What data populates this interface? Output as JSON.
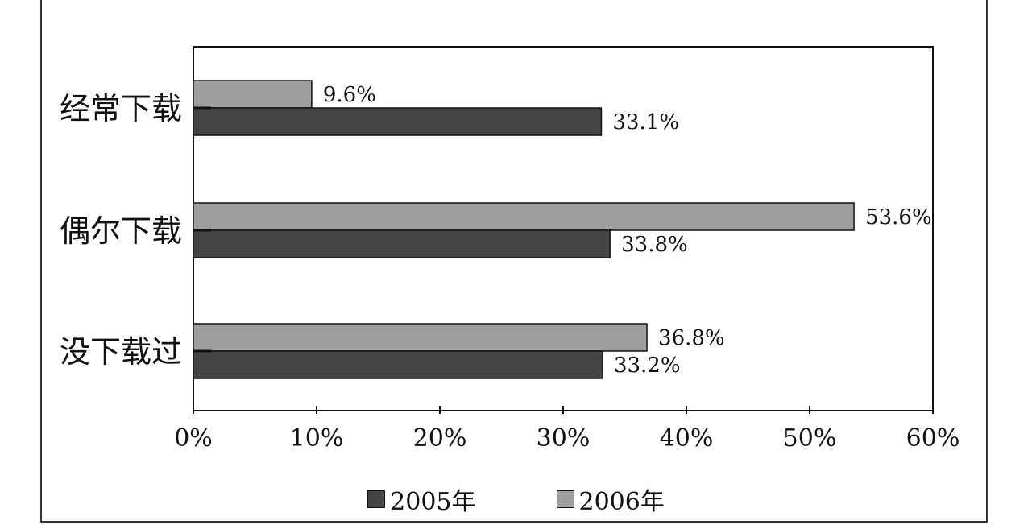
{
  "chart_data": {
    "type": "bar",
    "orientation": "horizontal",
    "categories": [
      "经常下载",
      "偶尔下载",
      "没下载过"
    ],
    "series": [
      {
        "name": "2005年",
        "values": [
          33.1,
          33.8,
          33.2
        ],
        "labels": [
          "33.1%",
          "33.8%",
          "33.2%"
        ],
        "color": "#444444"
      },
      {
        "name": "2006年",
        "values": [
          9.6,
          53.6,
          36.8
        ],
        "labels": [
          "9.6%",
          "53.6%",
          "36.8%"
        ],
        "color": "#9e9e9e"
      }
    ],
    "xlim": [
      0,
      60
    ],
    "xticks": [
      0,
      10,
      20,
      30,
      40,
      50,
      60
    ],
    "xtick_labels": [
      "0%",
      "10%",
      "20%",
      "30%",
      "40%",
      "50%",
      "60%"
    ],
    "legend_position": "bottom",
    "grid": false
  }
}
